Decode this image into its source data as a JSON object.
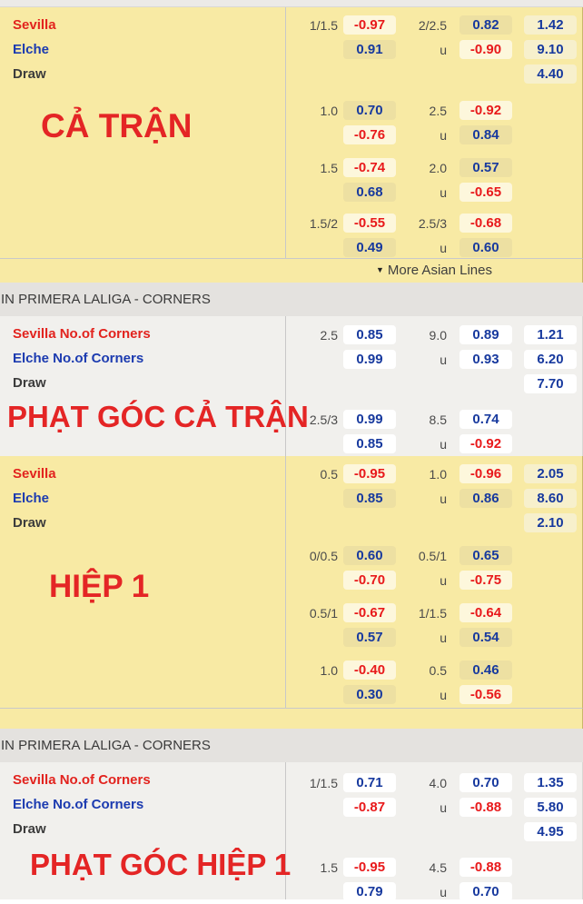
{
  "colors": {
    "section_yellow": "#F8EAA4",
    "section_white": "#F1F0ED",
    "box_cream_negative": "#FDF7DC",
    "box_khaki_positive": "#EDE0A2",
    "box_cream_1x2": "#F7F0CC",
    "box_white": "#FFFFFF",
    "odds_positive_blue": "#17399E",
    "odds_negative_red": "#E8191B",
    "team_red": "#E2231E",
    "team_blue": "#1C3BB0",
    "overlay_red": "#E42525",
    "header_bg": "#E4E2DF"
  },
  "league_header": "IN PRIMERA LALIGA - CORNERS",
  "more_asian_lines": {
    "icon": "▼",
    "label": "More Asian Lines"
  },
  "sections": [
    {
      "name": "full-match",
      "theme": "yellow",
      "overlay_label": "CẢ TRẬN",
      "row_labels": [
        "Sevilla",
        "Elche",
        "Draw"
      ],
      "row_label_colors": [
        "red",
        "blue",
        "dark"
      ],
      "groups": [
        [
          [
            "1/1.5",
            "-0.97",
            "2/2.5",
            "0.82",
            "1.42"
          ],
          [
            "",
            "0.91",
            "u",
            "-0.90",
            "9.10"
          ],
          [
            "",
            "",
            "",
            "",
            "4.40"
          ]
        ],
        [
          [
            "1.0",
            "0.70",
            "2.5",
            "-0.92",
            ""
          ],
          [
            "",
            "-0.76",
            "u",
            "0.84",
            ""
          ]
        ],
        [
          [
            "1.5",
            "-0.74",
            "2.0",
            "0.57",
            ""
          ],
          [
            "",
            "0.68",
            "u",
            "-0.65",
            ""
          ]
        ],
        [
          [
            "1.5/2",
            "-0.55",
            "2.5/3",
            "-0.68",
            ""
          ],
          [
            "",
            "0.49",
            "u",
            "0.60",
            ""
          ]
        ]
      ]
    },
    {
      "name": "corners-full-match",
      "theme": "white",
      "overlay_label": "PHẠT GÓC CẢ TRẬN",
      "row_labels": [
        "Sevilla No.of Corners",
        "Elche No.of Corners",
        "Draw"
      ],
      "row_label_colors": [
        "red",
        "blue",
        "dark"
      ],
      "groups": [
        [
          [
            "2.5",
            "0.85",
            "9.0",
            "0.89",
            "1.21"
          ],
          [
            "",
            "0.99",
            "u",
            "0.93",
            "6.20"
          ],
          [
            "",
            "",
            "",
            "",
            "7.70"
          ]
        ],
        [
          [
            "2.5/3",
            "0.99",
            "8.5",
            "0.74",
            ""
          ],
          [
            "",
            "0.85",
            "u",
            "-0.92",
            ""
          ]
        ]
      ]
    },
    {
      "name": "first-half",
      "theme": "yellow",
      "overlay_label": "HIỆP 1",
      "row_labels": [
        "Sevilla",
        "Elche",
        "Draw"
      ],
      "row_label_colors": [
        "red",
        "blue",
        "dark"
      ],
      "groups": [
        [
          [
            "0.5",
            "-0.95",
            "1.0",
            "-0.96",
            "2.05"
          ],
          [
            "",
            "0.85",
            "u",
            "0.86",
            "8.60"
          ],
          [
            "",
            "",
            "",
            "",
            "2.10"
          ]
        ],
        [
          [
            "0/0.5",
            "0.60",
            "0.5/1",
            "0.65",
            ""
          ],
          [
            "",
            "-0.70",
            "u",
            "-0.75",
            ""
          ]
        ],
        [
          [
            "0.5/1",
            "-0.67",
            "1/1.5",
            "-0.64",
            ""
          ],
          [
            "",
            "0.57",
            "u",
            "0.54",
            ""
          ]
        ],
        [
          [
            "1.0",
            "-0.40",
            "0.5",
            "0.46",
            ""
          ],
          [
            "",
            "0.30",
            "u",
            "-0.56",
            ""
          ]
        ]
      ]
    },
    {
      "name": "corners-first-half",
      "theme": "white",
      "overlay_label": "PHẠT GÓC HIỆP 1",
      "row_labels": [
        "Sevilla No.of Corners",
        "Elche No.of Corners",
        "Draw"
      ],
      "row_label_colors": [
        "red",
        "blue",
        "dark"
      ],
      "groups": [
        [
          [
            "1/1.5",
            "0.71",
            "4.0",
            "0.70",
            "1.35"
          ],
          [
            "",
            "-0.87",
            "u",
            "-0.88",
            "5.80"
          ],
          [
            "",
            "",
            "",
            "",
            "4.95"
          ]
        ],
        [
          [
            "1.5",
            "-0.95",
            "4.5",
            "-0.88",
            ""
          ],
          [
            "",
            "0.79",
            "u",
            "0.70",
            ""
          ]
        ]
      ]
    }
  ]
}
